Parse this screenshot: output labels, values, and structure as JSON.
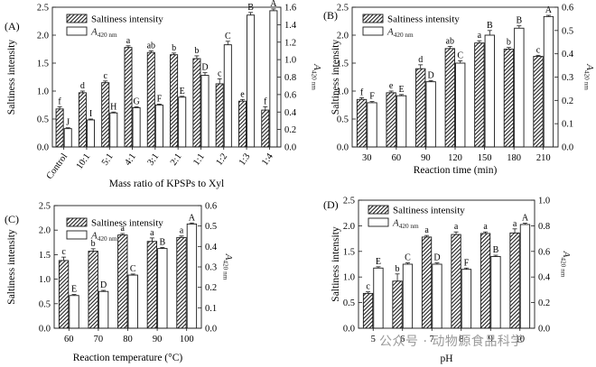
{
  "watermark": "公众号 · 动物源食品科学",
  "chart_data": [
    {
      "panel_label": "(A)",
      "type": "bar",
      "categories": [
        "Control",
        "10:1",
        "5:1",
        "4:1",
        "3:1",
        "2:1",
        "1:1",
        "1:2",
        "1:3",
        "1:4"
      ],
      "xlabel": "Mass ratio of KPSPs to Xyl",
      "ylabel": "Saltiness intensity",
      "y2label": "A420 nm",
      "ylim": [
        0,
        2.5
      ],
      "y2lim": [
        0,
        1.6
      ],
      "yticks": [
        "0.0",
        "0.5",
        "1.0",
        "1.5",
        "2.0",
        "2.5"
      ],
      "y2ticks": [
        "0.0",
        "0.2",
        "0.4",
        "0.6",
        "0.8",
        "1.0",
        "1.2",
        "1.4",
        "1.6"
      ],
      "legend": [
        "Saltiness intensity",
        "A420 nm"
      ],
      "legend_position": "top-left",
      "rotate_xticks": true,
      "series": [
        {
          "name": "Saltiness intensity",
          "axis": "left",
          "style": "hatched",
          "values": [
            0.68,
            0.97,
            1.15,
            1.78,
            1.69,
            1.65,
            1.58,
            1.13,
            0.82,
            0.66
          ],
          "errors": [
            0.04,
            0.03,
            0.03,
            0.03,
            0.03,
            0.03,
            0.05,
            0.09,
            0.03,
            0.06
          ],
          "labels": [
            "f",
            "d",
            "c",
            "a",
            "ab",
            "b",
            "b",
            "c",
            "e",
            "f"
          ]
        },
        {
          "name": "A420 nm",
          "axis": "right",
          "style": "open",
          "values": [
            0.21,
            0.31,
            0.39,
            0.45,
            0.48,
            0.57,
            0.82,
            1.17,
            1.51,
            1.56
          ],
          "errors": [
            0.01,
            0.01,
            0.01,
            0.01,
            0.01,
            0.01,
            0.03,
            0.04,
            0.03,
            0.02
          ],
          "labels": [
            "J",
            "I",
            "H",
            "G",
            "F",
            "E",
            "D",
            "C",
            "B",
            "A"
          ]
        }
      ]
    },
    {
      "panel_label": "(B)",
      "type": "bar",
      "categories": [
        "30",
        "60",
        "90",
        "120",
        "150",
        "180",
        "210"
      ],
      "xlabel": "Reaction time (min)",
      "ylabel": "Saltiness intensity",
      "y2label": "A420 nm",
      "ylim": [
        0,
        2.5
      ],
      "y2lim": [
        0,
        0.6
      ],
      "yticks": [
        "0.0",
        "0.5",
        "1.0",
        "1.5",
        "2.0",
        "2.5"
      ],
      "y2ticks": [
        "0.0",
        "0.1",
        "0.2",
        "0.3",
        "0.4",
        "0.5",
        "0.6"
      ],
      "legend": [
        "Saltiness intensity",
        "A420 nm"
      ],
      "legend_position": "top-left",
      "series": [
        {
          "name": "Saltiness intensity",
          "axis": "left",
          "style": "hatched",
          "values": [
            0.85,
            0.97,
            1.4,
            1.76,
            1.86,
            1.75,
            1.62
          ],
          "errors": [
            0.03,
            0.03,
            0.07,
            0.04,
            0.04,
            0.03,
            0.02
          ],
          "labels": [
            "f",
            "e",
            "d",
            "ab",
            "a",
            "b",
            "c"
          ]
        },
        {
          "name": "A420 nm",
          "axis": "right",
          "style": "open",
          "values": [
            0.19,
            0.22,
            0.28,
            0.36,
            0.48,
            0.51,
            0.56
          ],
          "errors": [
            0.005,
            0.005,
            0.005,
            0.01,
            0.02,
            0.01,
            0.005
          ],
          "labels": [
            "F",
            "E",
            "D",
            "C",
            "B",
            "B",
            "A"
          ]
        }
      ]
    },
    {
      "panel_label": "(C)",
      "type": "bar",
      "categories": [
        "60",
        "70",
        "80",
        "90",
        "100"
      ],
      "xlabel": "Reaction temperature (°C)",
      "ylabel": "Saltiness intensity",
      "y2label": "A420 nm",
      "ylim": [
        0,
        2.5
      ],
      "y2lim": [
        0,
        0.6
      ],
      "yticks": [
        "0.0",
        "0.5",
        "1.0",
        "1.5",
        "2.0",
        "2.5"
      ],
      "y2ticks": [
        "0.0",
        "0.1",
        "0.2",
        "0.3",
        "0.4",
        "0.5",
        "0.6"
      ],
      "legend": [
        "Saltiness intensity",
        "A420 nm"
      ],
      "legend_position": "top-left",
      "series": [
        {
          "name": "Saltiness intensity",
          "axis": "left",
          "style": "hatched",
          "values": [
            1.38,
            1.57,
            1.9,
            1.77,
            1.85
          ],
          "errors": [
            0.07,
            0.05,
            0.03,
            0.07,
            0.03
          ],
          "labels": [
            "c",
            "b",
            "a",
            "a",
            "a"
          ]
        },
        {
          "name": "A420 nm",
          "axis": "right",
          "style": "open",
          "values": [
            0.16,
            0.18,
            0.26,
            0.39,
            0.51
          ],
          "errors": [
            0.005,
            0.005,
            0.005,
            0.005,
            0.005
          ],
          "labels": [
            "E",
            "D",
            "C",
            "B",
            "A"
          ]
        }
      ]
    },
    {
      "panel_label": "(D)",
      "type": "bar",
      "categories": [
        "5",
        "6",
        "7",
        "8",
        "9",
        "10"
      ],
      "xlabel": "pH",
      "ylabel": "Saltiness intensity",
      "y2label": "A420 nm",
      "ylim": [
        0,
        2.5
      ],
      "y2lim": [
        0,
        1.0
      ],
      "yticks": [
        "0.0",
        "0.5",
        "1.0",
        "1.5",
        "2.0",
        "2.5"
      ],
      "y2ticks": [
        "0.0",
        "0.2",
        "0.4",
        "0.6",
        "0.8",
        "1.0"
      ],
      "legend": [
        "Saltiness intensity",
        "A420 nm"
      ],
      "legend_position": "top-left",
      "series": [
        {
          "name": "Saltiness intensity",
          "axis": "left",
          "style": "hatched",
          "values": [
            0.68,
            0.92,
            1.78,
            1.83,
            1.85,
            1.86
          ],
          "errors": [
            0.03,
            0.14,
            0.03,
            0.05,
            0.03,
            0.08
          ],
          "labels": [
            "c",
            "b",
            "a",
            "a",
            "a",
            "a"
          ]
        },
        {
          "name": "A420 nm",
          "axis": "right",
          "style": "open",
          "values": [
            0.47,
            0.5,
            0.5,
            0.46,
            0.56,
            0.81
          ],
          "errors": [
            0.01,
            0.01,
            0.01,
            0.01,
            0.01,
            0.01
          ],
          "labels": [
            "E",
            "C",
            "D",
            "F",
            "B",
            "A"
          ]
        }
      ]
    }
  ]
}
